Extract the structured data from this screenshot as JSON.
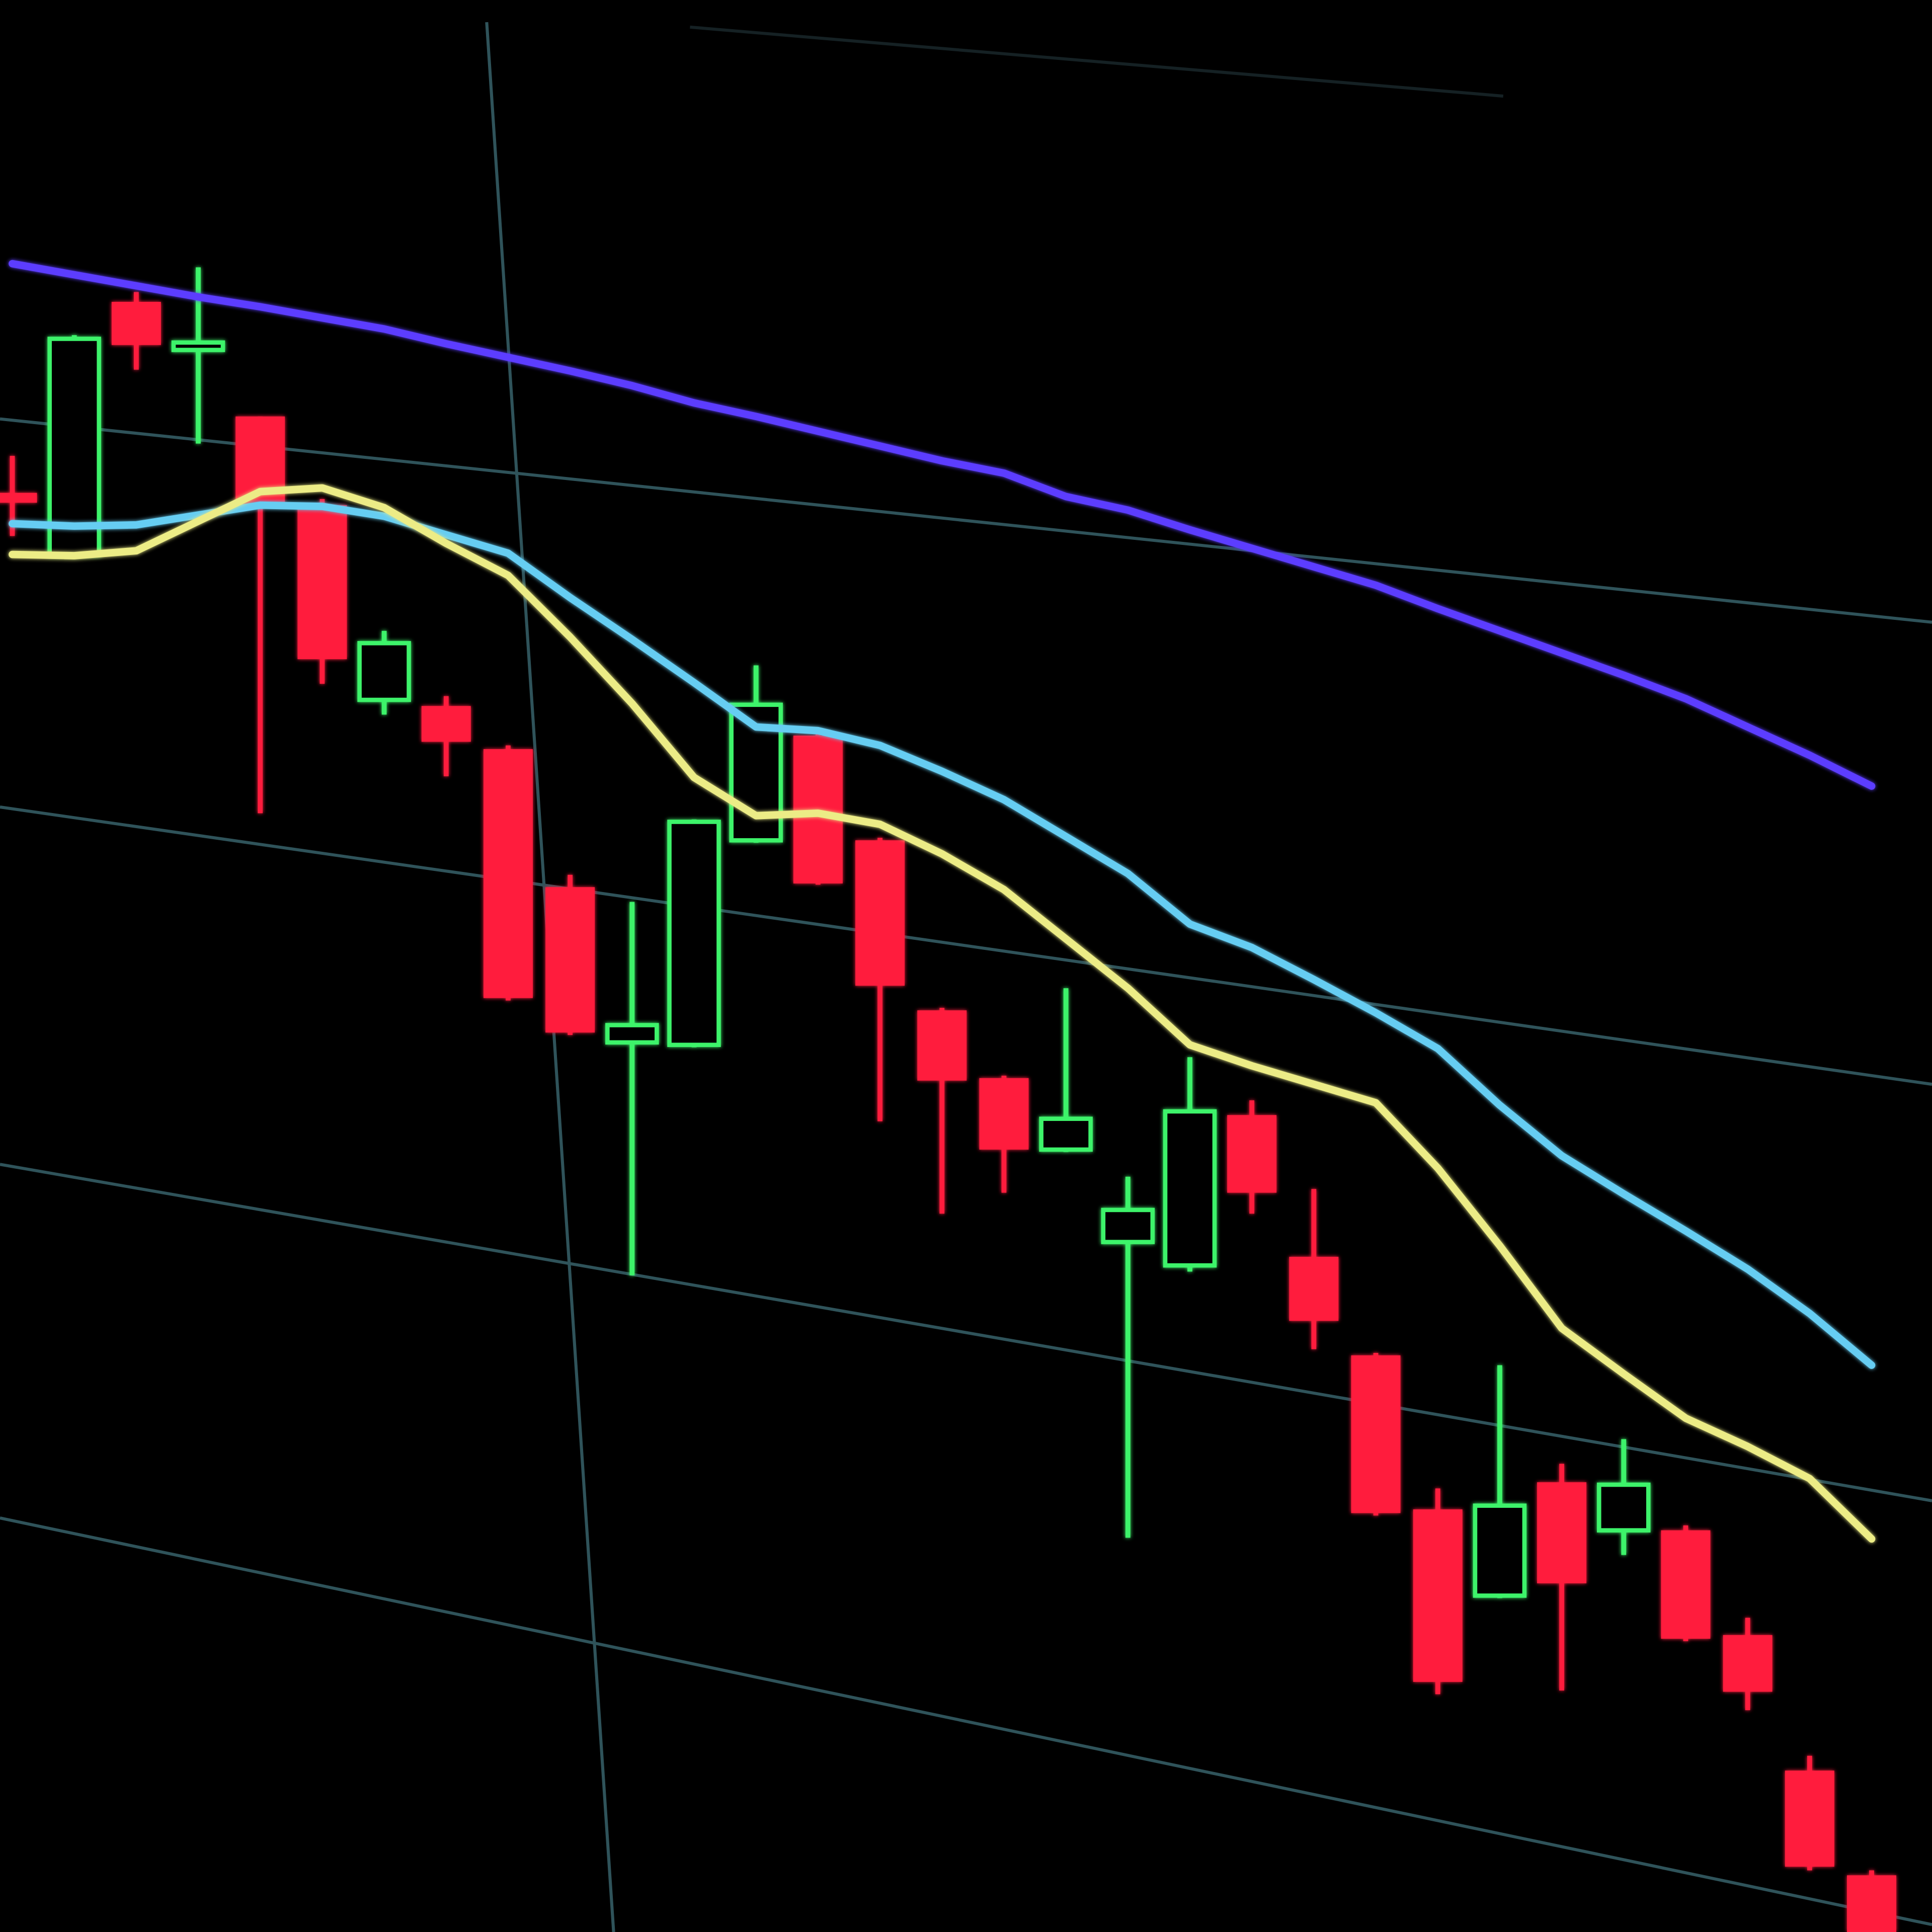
{
  "chart_data": {
    "type": "candlestick",
    "categories": [
      null,
      null,
      null,
      null,
      null,
      null,
      null,
      null,
      null,
      null,
      null,
      null,
      null,
      null,
      null,
      null,
      null,
      null,
      null,
      null,
      null,
      null,
      null,
      null,
      null,
      null,
      null,
      null,
      null,
      null,
      null
    ],
    "open": [
      1200,
      1150,
      1355,
      1316,
      1262,
      1190,
      1032,
      1027,
      992,
      880,
      754,
      752,
      918,
      1003,
      918,
      780,
      725,
      667,
      592,
      573,
      695,
      580,
      500,
      375,
      305,
      397,
      358,
      358,
      273,
      163,
      78
    ],
    "high": [
      1230,
      1328,
      1363,
      1383,
      1262,
      1195,
      1088,
      1035,
      995,
      890,
      868,
      935,
      1060,
      1005,
      920,
      782,
      727,
      798,
      645,
      742,
      707,
      635,
      502,
      392,
      492,
      412,
      432,
      362,
      287,
      175,
      82
    ],
    "low": [
      1165,
      1148,
      1300,
      1240,
      940,
      1045,
      1020,
      970,
      788,
      760,
      565,
      750,
      916,
      882,
      690,
      615,
      632,
      665,
      352,
      568,
      615,
      505,
      370,
      225,
      303,
      228,
      338,
      268,
      212,
      82,
      32
    ],
    "close": [
      1192,
      1325,
      1320,
      1322,
      1190,
      1065,
      1078,
      998,
      790,
      762,
      768,
      933,
      1028,
      883,
      800,
      723,
      667,
      692,
      618,
      698,
      632,
      528,
      372,
      235,
      378,
      315,
      395,
      270,
      227,
      85,
      32
    ],
    "up_color": "#3ef36a",
    "down_color": "#ff1e3c",
    "series": [
      {
        "color": "#5b3dff",
        "values": [
          1386,
          1377,
          1368,
          1359,
          1351,
          1342,
          1333,
          1321,
          1310,
          1299,
          1287,
          1273,
          1262,
          1250,
          1238,
          1226,
          1216,
          1197,
          1186,
          1170,
          1155,
          1140,
          1125,
          1106,
          1088,
          1070,
          1052,
          1033,
          1010,
          987,
          962
        ]
      },
      {
        "color": "#66cdf2",
        "values": [
          1175,
          1173,
          1174,
          1182,
          1190,
          1189,
          1181,
          1166,
          1151,
          1115,
          1081,
          1046,
          1010,
          1007,
          995,
          974,
          951,
          921,
          891,
          850,
          831,
          805,
          778,
          749,
          703,
          662,
          631,
          601,
          570,
          534,
          492
        ]
      },
      {
        "color": "#ecec86",
        "values": [
          1150,
          1149,
          1153,
          1177,
          1201,
          1204,
          1188,
          1159,
          1133,
          1083,
          1029,
          969,
          938,
          940,
          931,
          907,
          878,
          838,
          798,
          752,
          735,
          720,
          705,
          652,
          589,
          522,
          485,
          449,
          426,
          400,
          351
        ]
      }
    ],
    "ylim": [
      32,
      1600
    ]
  }
}
